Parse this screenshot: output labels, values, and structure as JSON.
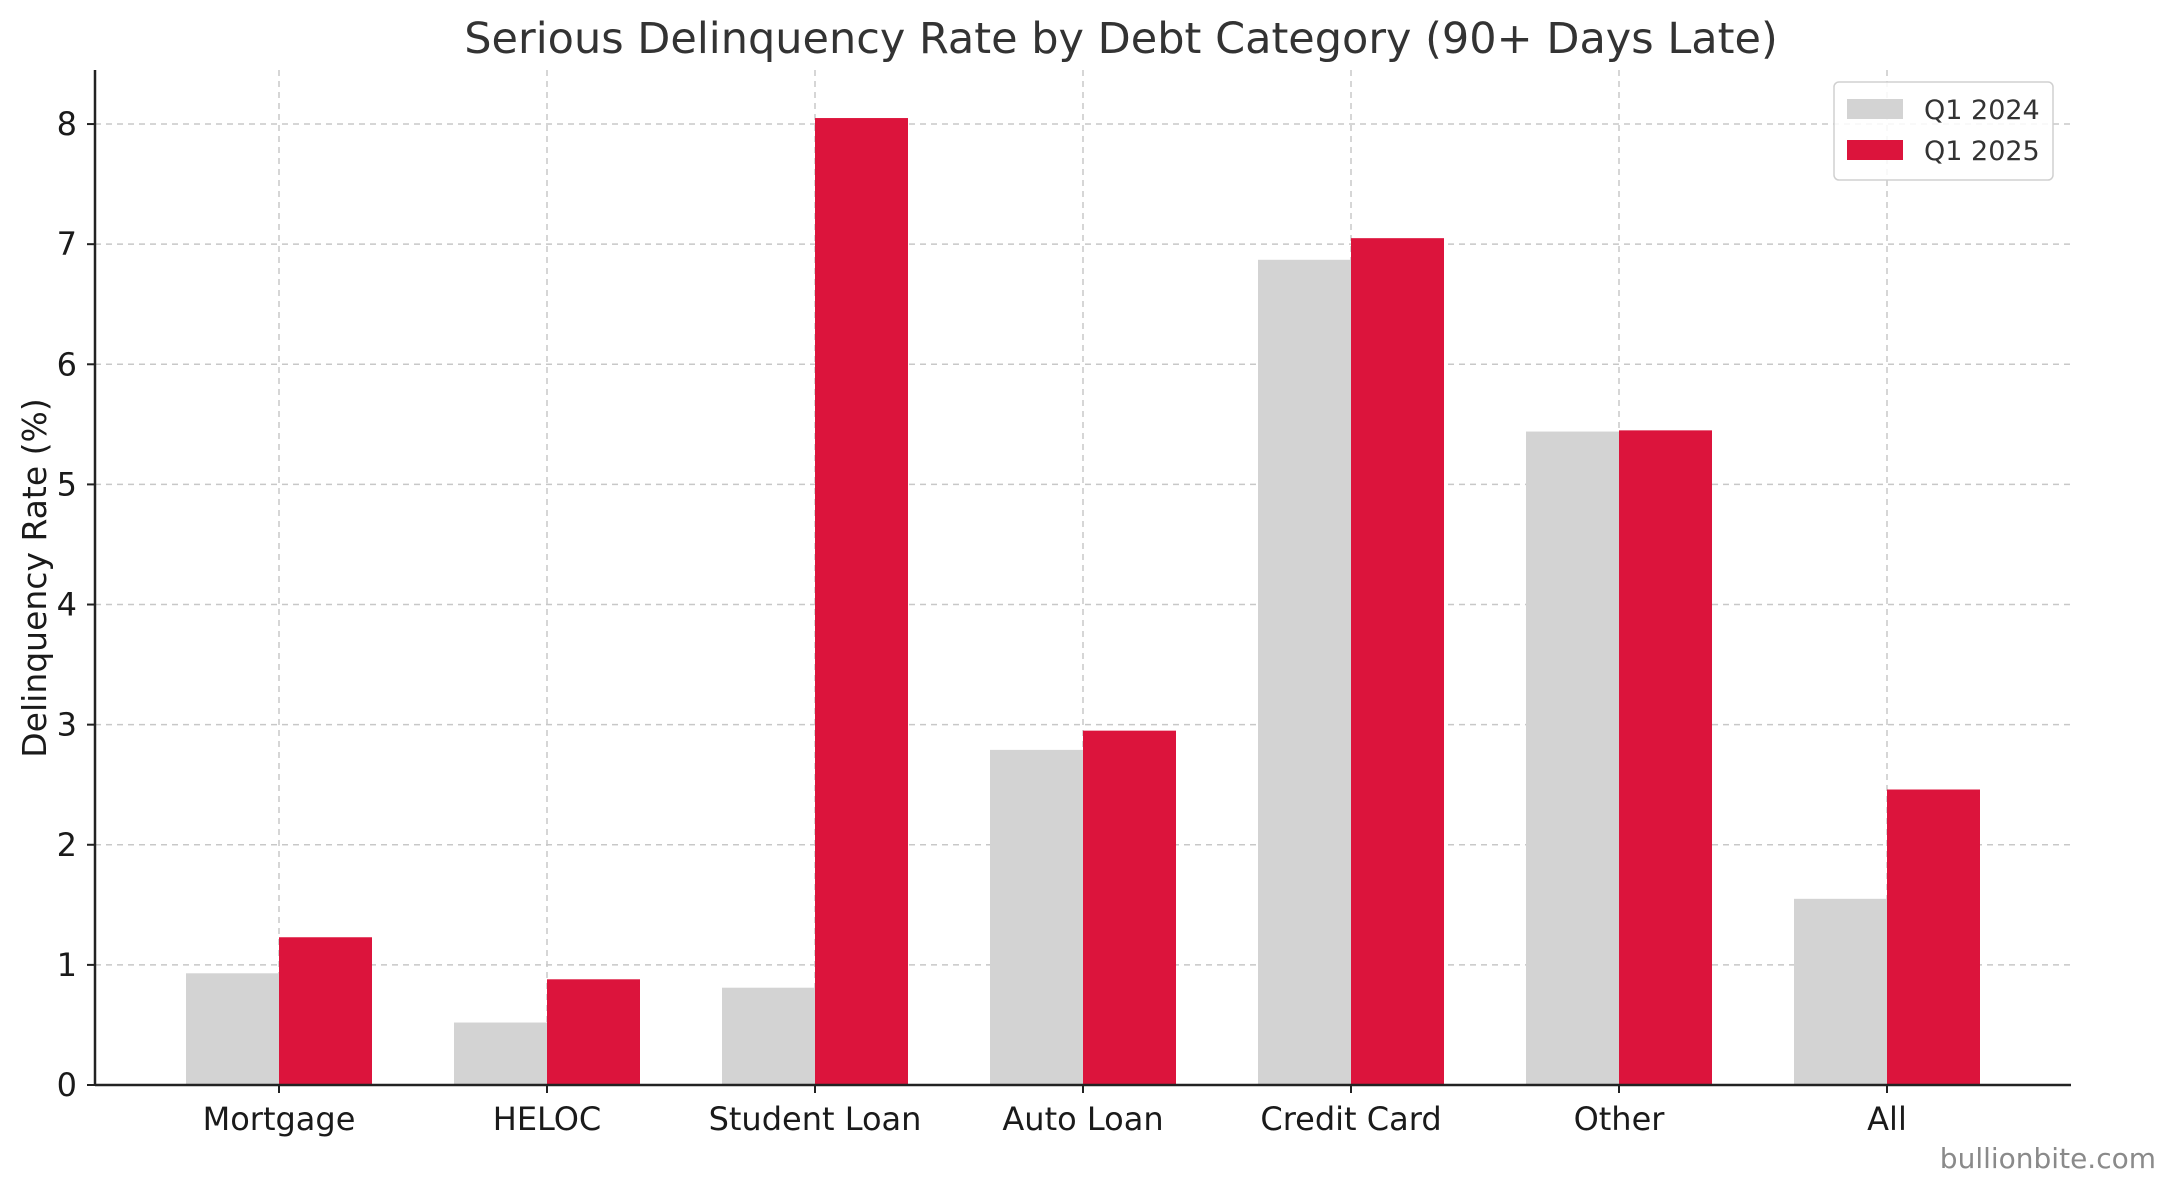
{
  "chart_data": {
    "type": "bar",
    "title": "Serious Delinquency Rate by Debt Category (90+ Days Late)",
    "xlabel": "",
    "ylabel": "Delinquency Rate (%)",
    "ylim": [
      0,
      8.45
    ],
    "yticks": [
      0,
      1,
      2,
      3,
      4,
      5,
      6,
      7,
      8
    ],
    "grid": true,
    "legend_position": "top-right",
    "categories": [
      "Mortgage",
      "HELOC",
      "Student Loan",
      "Auto Loan",
      "Credit Card",
      "Other",
      "All"
    ],
    "series": [
      {
        "name": "Q1 2024",
        "color": "#d3d3d3",
        "values": [
          0.93,
          0.52,
          0.81,
          2.79,
          6.87,
          5.44,
          1.55
        ]
      },
      {
        "name": "Q1 2025",
        "color": "#dc143c",
        "values": [
          1.23,
          0.88,
          8.05,
          2.95,
          7.05,
          5.45,
          2.46
        ]
      }
    ]
  },
  "watermark": "bullionbite.com"
}
